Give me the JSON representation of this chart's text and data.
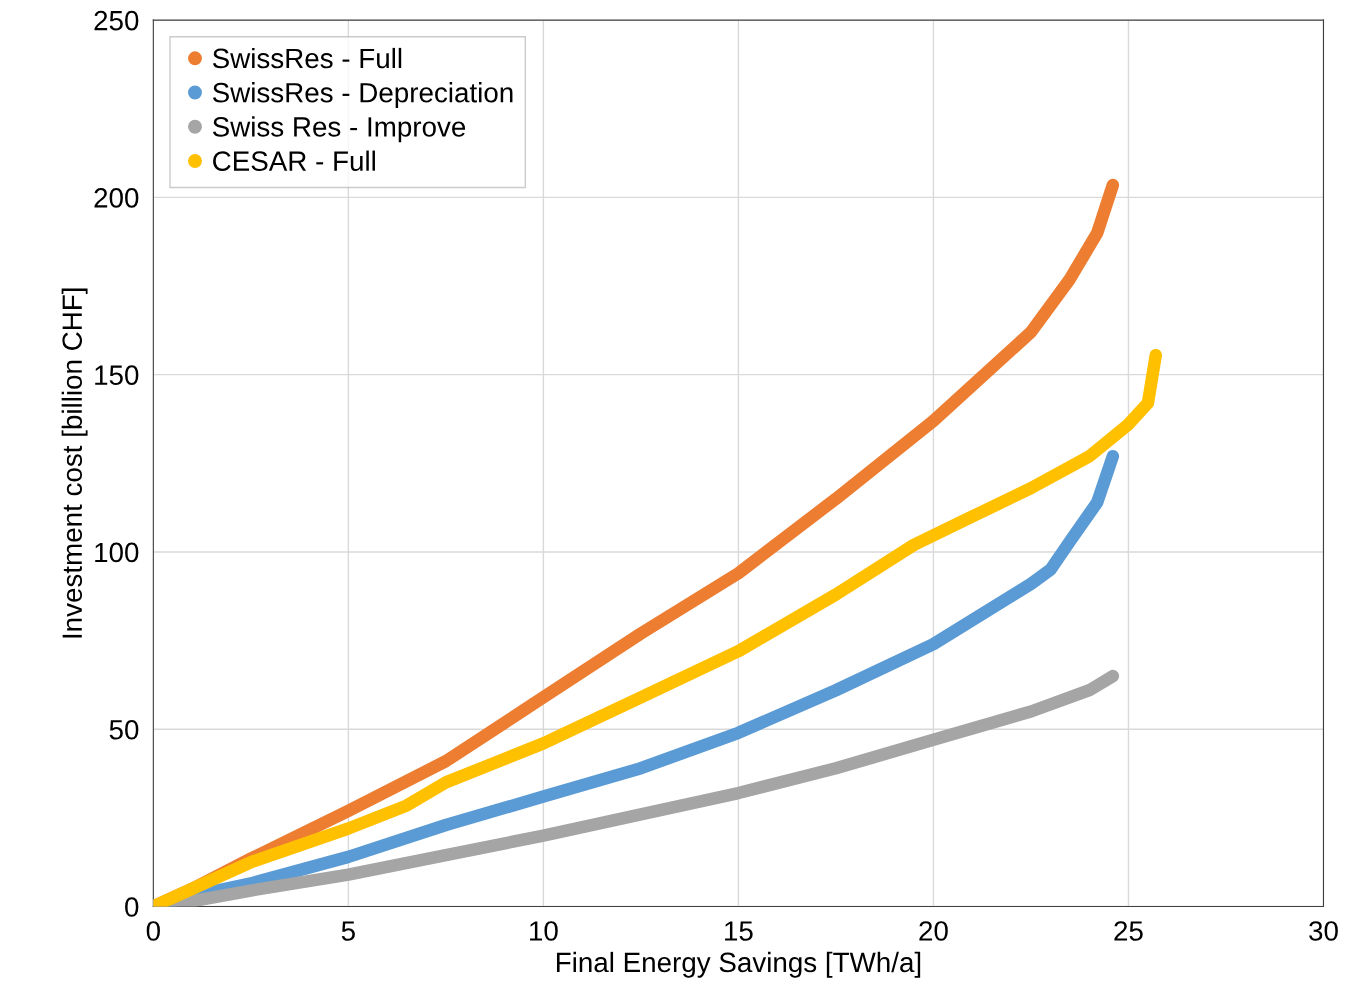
{
  "chart_data": {
    "type": "line",
    "xlabel": "Final Energy Savings [TWh/a]",
    "ylabel": "Investment cost [billion CHF]",
    "xlim": [
      0,
      30
    ],
    "xticks": [
      0,
      5,
      10,
      15,
      20,
      25,
      30
    ],
    "ylim": [
      0,
      250
    ],
    "yticks": [
      0,
      50,
      100,
      150,
      200,
      250
    ],
    "grid": true,
    "legend": "top left",
    "marker": "none",
    "line_style": "solid",
    "series": [
      {
        "name": "SwissRes - Full",
        "color": "#ed7d31",
        "x": [
          0,
          1,
          2.5,
          5,
          7.5,
          10,
          12.5,
          15,
          17.5,
          20,
          22.5,
          23.5,
          24.2,
          24.6
        ],
        "values": [
          0,
          5,
          13.5,
          27,
          41,
          59,
          77,
          94,
          115,
          137,
          162,
          177,
          190,
          203.5
        ]
      },
      {
        "name": "SwissRes - Depreciation",
        "color": "#5b9bd5",
        "x": [
          0,
          1,
          2.5,
          5,
          7.5,
          10,
          12.5,
          15,
          17.5,
          20,
          22.5,
          23,
          23.5,
          24.2,
          24.6
        ],
        "values": [
          0,
          3,
          6.5,
          14,
          23,
          31,
          39,
          49,
          61,
          74,
          91,
          95,
          103,
          114,
          127
        ]
      },
      {
        "name": "Swiss Res - Improve",
        "color": "#a5a5a5",
        "x": [
          0,
          1,
          2.5,
          5,
          7.5,
          10,
          12.5,
          15,
          17.5,
          20,
          22.5,
          24,
          24.6
        ],
        "values": [
          0,
          1.5,
          4.5,
          9,
          14.5,
          20,
          26,
          32,
          39,
          47,
          55,
          61,
          65
        ]
      },
      {
        "name": "CESAR - Full",
        "color": "#ffc000",
        "x": [
          0,
          1,
          2.5,
          5,
          6.5,
          7.5,
          10,
          12.5,
          15,
          17.5,
          19.5,
          21,
          22.5,
          24,
          25,
          25.5,
          25.7
        ],
        "values": [
          0,
          5,
          12.5,
          22,
          28.5,
          35,
          46,
          59,
          72,
          88,
          102,
          110,
          118,
          127,
          136,
          142,
          155.5
        ]
      }
    ]
  }
}
